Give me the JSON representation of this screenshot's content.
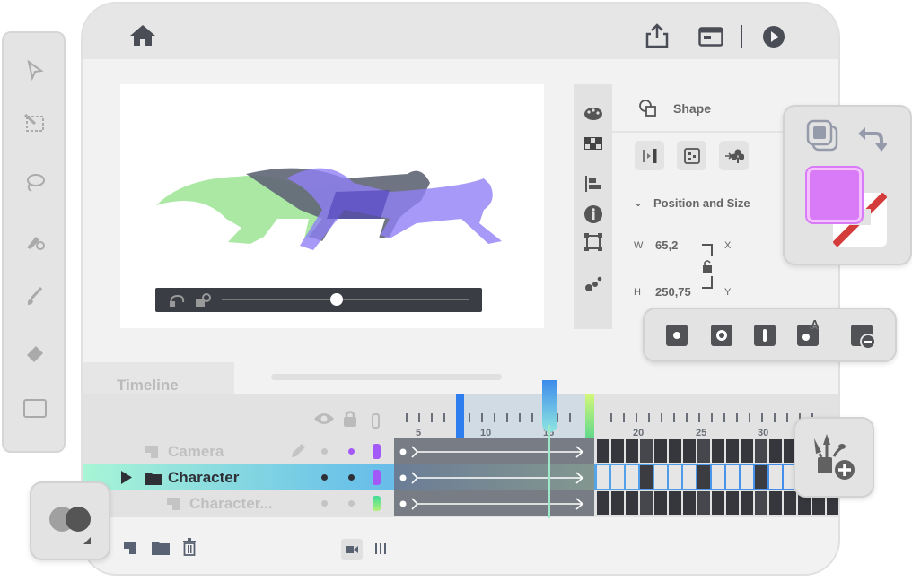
{
  "topbar": {
    "icons": [
      "home-icon",
      "share-icon",
      "window-icon",
      "play-icon"
    ]
  },
  "toolbar": {
    "tools": [
      "select-arrow-icon",
      "transform-icon",
      "lasso-icon",
      "paint-bucket-icon",
      "brush-icon",
      "eraser-icon",
      "rectangle-icon"
    ]
  },
  "side_strip": {
    "icons": [
      "palette-icon",
      "grid-icon",
      "align-icon",
      "info-icon",
      "bounds-icon",
      "dots-icon"
    ]
  },
  "properties": {
    "header": "Shape",
    "section": "Position and Size",
    "w_label": "W",
    "w_value": "65,2",
    "h_label": "H",
    "h_value": "250,75",
    "x_label": "X",
    "y_label": "Y"
  },
  "color_panel": {
    "fill_color": "#d97af7",
    "stroke": "none"
  },
  "timeline": {
    "tab": "Timeline",
    "ruler": {
      "labels": [
        "5",
        "10",
        "15",
        "20",
        "25",
        "30"
      ],
      "selection_start": 6,
      "selection_end": 16,
      "playhead": 13
    },
    "layers": [
      {
        "name": "Camera",
        "color": "#a259f7",
        "selected": false
      },
      {
        "name": "Character",
        "color": "#a259f7",
        "selected": true
      },
      {
        "name": "Character...",
        "color": "#3ddc97",
        "selected": false
      }
    ],
    "keyframes_middle_row": [
      21,
      25,
      29
    ]
  }
}
